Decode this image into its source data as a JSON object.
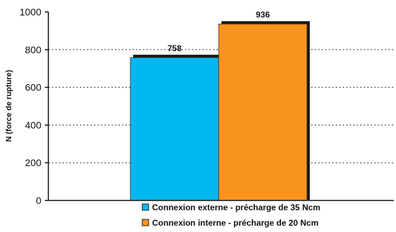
{
  "chart_data": {
    "type": "bar",
    "ylabel": "N (force de rupture)",
    "ylim": [
      0,
      1000
    ],
    "yticks": [
      0,
      200,
      400,
      600,
      800,
      1000
    ],
    "grid": "dotted horizontal",
    "legend_position": "bottom-center",
    "series": [
      {
        "name": "Connexion externe - précharge de 35 Ncm",
        "value": 758,
        "label": "758",
        "color": "#00b8f0"
      },
      {
        "name": "Connexion interne - précharge de 20 Ncm",
        "value": 936,
        "label": "936",
        "color": "#f7941d"
      }
    ]
  }
}
